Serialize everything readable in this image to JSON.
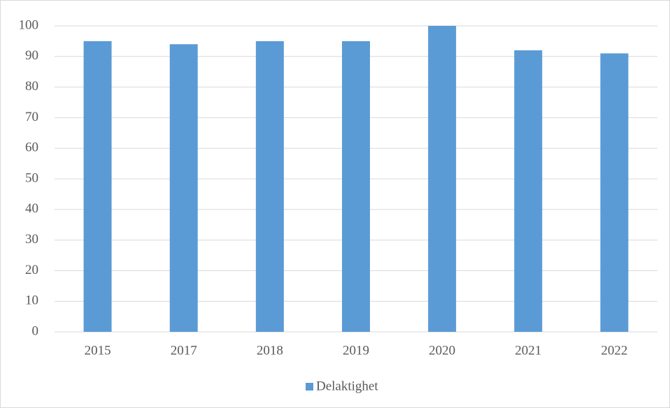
{
  "chart_data": {
    "type": "bar",
    "categories": [
      "2015",
      "2017",
      "2018",
      "2019",
      "2020",
      "2021",
      "2022"
    ],
    "series": [
      {
        "name": "Delaktighet",
        "color": "#5b9bd5",
        "values": [
          95,
          94,
          95,
          95,
          100,
          92,
          91
        ]
      }
    ],
    "ylim": [
      0,
      100
    ],
    "yticks": [
      0,
      10,
      20,
      30,
      40,
      50,
      60,
      70,
      80,
      90,
      100
    ],
    "grid": true,
    "legend": "bottom"
  }
}
